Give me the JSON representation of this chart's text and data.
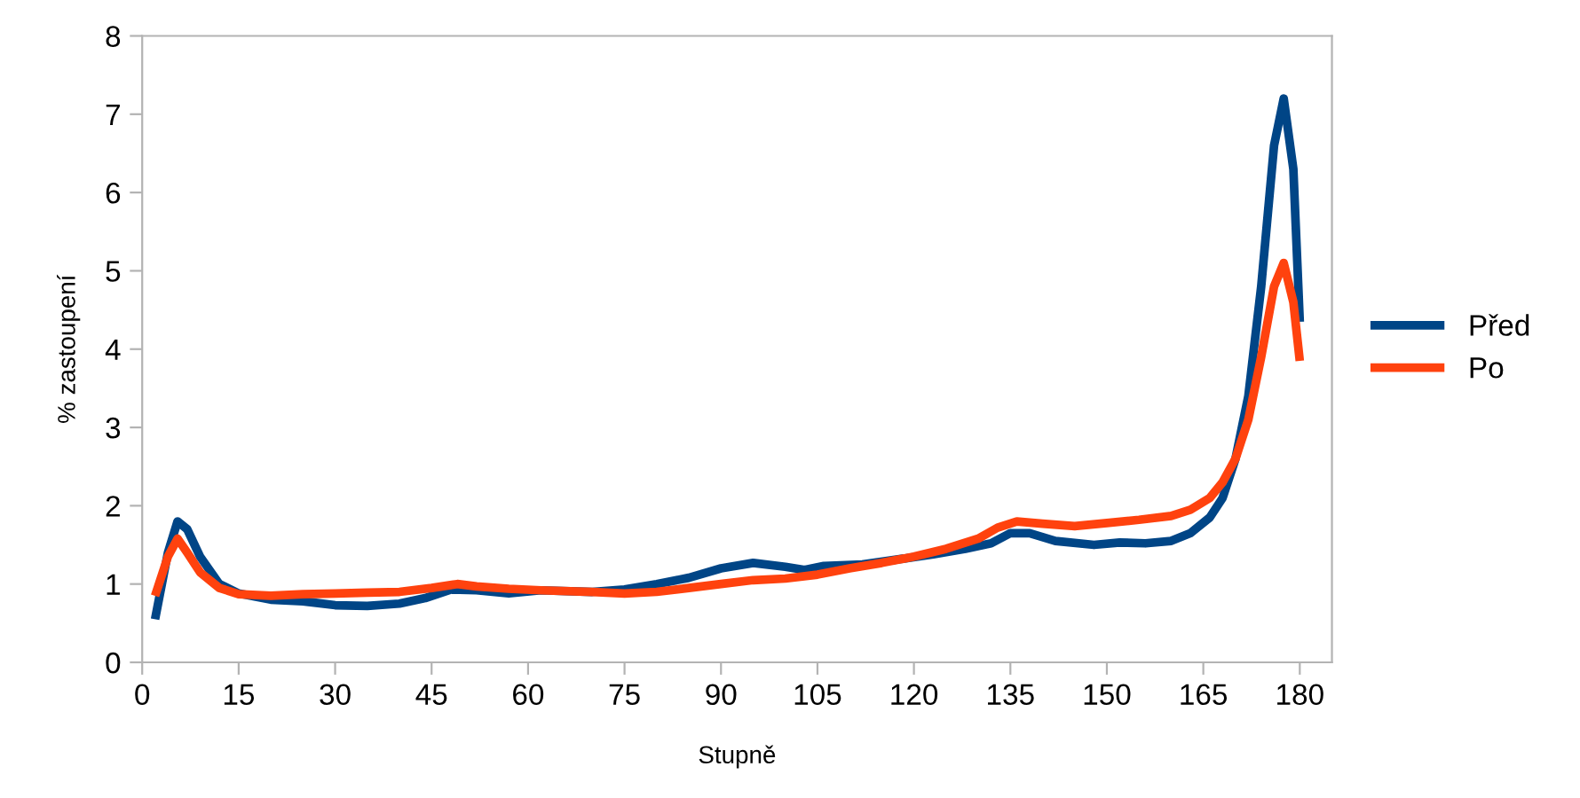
{
  "chart_data": {
    "type": "line",
    "xlabel": "Stupně",
    "ylabel": "% zastoupení",
    "xlim": [
      0,
      185
    ],
    "ylim": [
      0,
      8
    ],
    "xticks": [
      0,
      15,
      30,
      45,
      60,
      75,
      90,
      105,
      120,
      135,
      150,
      165,
      180
    ],
    "yticks": [
      0,
      1,
      2,
      3,
      4,
      5,
      6,
      7,
      8
    ],
    "grid": false,
    "legend": "right",
    "marker": "none",
    "line_style": "solid",
    "series": [
      {
        "name": "Před",
        "color": "#004586",
        "x": [
          2,
          4,
          5.5,
          7,
          9,
          12,
          15,
          20,
          25,
          30,
          35,
          40,
          44,
          48,
          52,
          57,
          62,
          70,
          75,
          80,
          85,
          90,
          95,
          100,
          103,
          106,
          112,
          118,
          123,
          128,
          132,
          135,
          138,
          142,
          148,
          152,
          156,
          160,
          163,
          166,
          168,
          170,
          172,
          174,
          176,
          177.5,
          179,
          180
        ],
        "values": [
          0.55,
          1.4,
          1.8,
          1.7,
          1.35,
          1.0,
          0.88,
          0.8,
          0.78,
          0.73,
          0.72,
          0.75,
          0.82,
          0.93,
          0.92,
          0.88,
          0.92,
          0.9,
          0.93,
          1.0,
          1.08,
          1.2,
          1.27,
          1.22,
          1.18,
          1.23,
          1.25,
          1.32,
          1.38,
          1.45,
          1.52,
          1.65,
          1.65,
          1.55,
          1.5,
          1.53,
          1.52,
          1.55,
          1.65,
          1.85,
          2.1,
          2.6,
          3.4,
          4.8,
          6.6,
          7.2,
          6.3,
          4.35
        ]
      },
      {
        "name": "Po",
        "color": "#ff420e",
        "x": [
          2,
          4,
          5.5,
          7,
          9,
          12,
          15,
          20,
          25,
          30,
          35,
          40,
          45,
          49,
          52,
          57,
          62,
          70,
          75,
          80,
          85,
          90,
          95,
          100,
          105,
          110,
          115,
          120,
          125,
          130,
          133,
          136,
          140,
          145,
          150,
          155,
          160,
          163,
          166,
          168,
          170,
          172,
          174,
          176,
          177.5,
          179,
          180
        ],
        "values": [
          0.85,
          1.35,
          1.58,
          1.4,
          1.15,
          0.95,
          0.87,
          0.85,
          0.87,
          0.88,
          0.89,
          0.9,
          0.95,
          1.0,
          0.97,
          0.94,
          0.92,
          0.9,
          0.88,
          0.9,
          0.95,
          1.0,
          1.05,
          1.07,
          1.12,
          1.2,
          1.27,
          1.35,
          1.45,
          1.58,
          1.72,
          1.8,
          1.77,
          1.74,
          1.78,
          1.82,
          1.87,
          1.95,
          2.1,
          2.3,
          2.6,
          3.1,
          3.9,
          4.8,
          5.1,
          4.6,
          3.85
        ]
      }
    ]
  }
}
